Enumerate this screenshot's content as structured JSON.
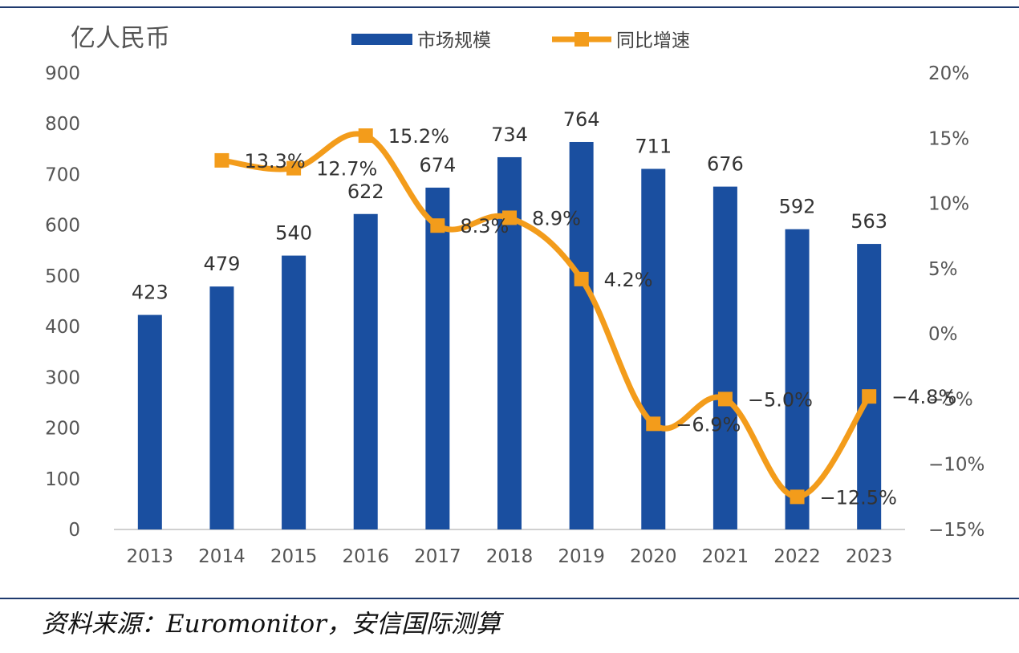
{
  "chart_data": {
    "type": "bar",
    "title": "",
    "ylabel_left": "亿人民币",
    "categories": [
      "2013",
      "2014",
      "2015",
      "2016",
      "2017",
      "2018",
      "2019",
      "2020",
      "2021",
      "2022",
      "2023"
    ],
    "series": [
      {
        "name": "市场规模",
        "type": "bar",
        "axis": "left",
        "color": "#1a4fa0",
        "values": [
          423,
          479,
          540,
          622,
          674,
          734,
          764,
          711,
          676,
          592,
          563
        ],
        "labels": [
          "423",
          "479",
          "540",
          "622",
          "674",
          "734",
          "764",
          "711",
          "676",
          "592",
          "563"
        ]
      },
      {
        "name": "同比增速",
        "type": "line",
        "axis": "right",
        "color": "#f39c1b",
        "values": [
          null,
          13.3,
          12.7,
          15.2,
          8.3,
          8.9,
          4.2,
          -6.9,
          -5.0,
          -12.5,
          -4.8
        ],
        "labels": [
          null,
          "13.3%",
          "12.7%",
          "15.2%",
          "8.3%",
          "8.9%",
          "4.2%",
          "-6.9%",
          "-5.0%",
          "-12.5%",
          "-4.8%"
        ]
      }
    ],
    "y_left": {
      "min": 0,
      "max": 900,
      "ticks": [
        "0",
        "100",
        "200",
        "300",
        "400",
        "500",
        "600",
        "700",
        "800",
        "900"
      ]
    },
    "y_right": {
      "min": -15,
      "max": 20,
      "ticks": [
        "-15%",
        "-10%",
        "-5%",
        "0%",
        "5%",
        "10%",
        "15%",
        "20%"
      ]
    },
    "legend_position": "top",
    "grid": false
  },
  "source_note": "资料来源：Euromonitor，安信国际测算"
}
